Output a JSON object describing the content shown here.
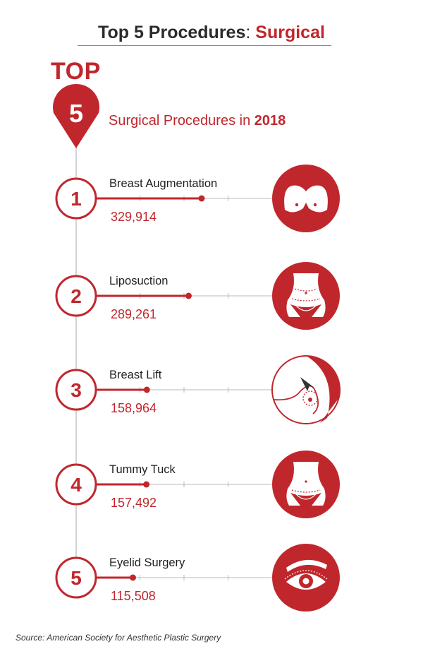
{
  "title": {
    "main": "Top 5 Procedures",
    "separator": ":",
    "accent": "Surgical"
  },
  "badge": {
    "top_label": "TOP",
    "number": "5",
    "subtitle_prefix": "Surgical Procedures in ",
    "subtitle_year": "2018"
  },
  "colors": {
    "accent": "#c0272d",
    "text_dark": "#2b2b2b",
    "grey_line": "#b8b8b8"
  },
  "chart_data": {
    "type": "bar",
    "categories": [
      "Breast Augmentation",
      "Liposuction",
      "Breast Lift",
      "Tummy Tuck",
      "Eyelid Surgery"
    ],
    "ranks": [
      "1",
      "2",
      "3",
      "4",
      "5"
    ],
    "values": [
      329914,
      289261,
      158964,
      157492,
      115508
    ],
    "value_labels": [
      "329,914",
      "289,261",
      "158,964",
      "157,492",
      "115,508"
    ],
    "icons": [
      "breasts-icon",
      "liposuction-torso-icon",
      "breast-lift-icon",
      "tummy-tuck-icon",
      "eye-icon"
    ],
    "xlim": [
      0,
      550000
    ],
    "orientation": "horizontal",
    "title": "Top 5 Procedures: Surgical"
  },
  "source": "Source: American Society for Aesthetic Plastic Surgery"
}
